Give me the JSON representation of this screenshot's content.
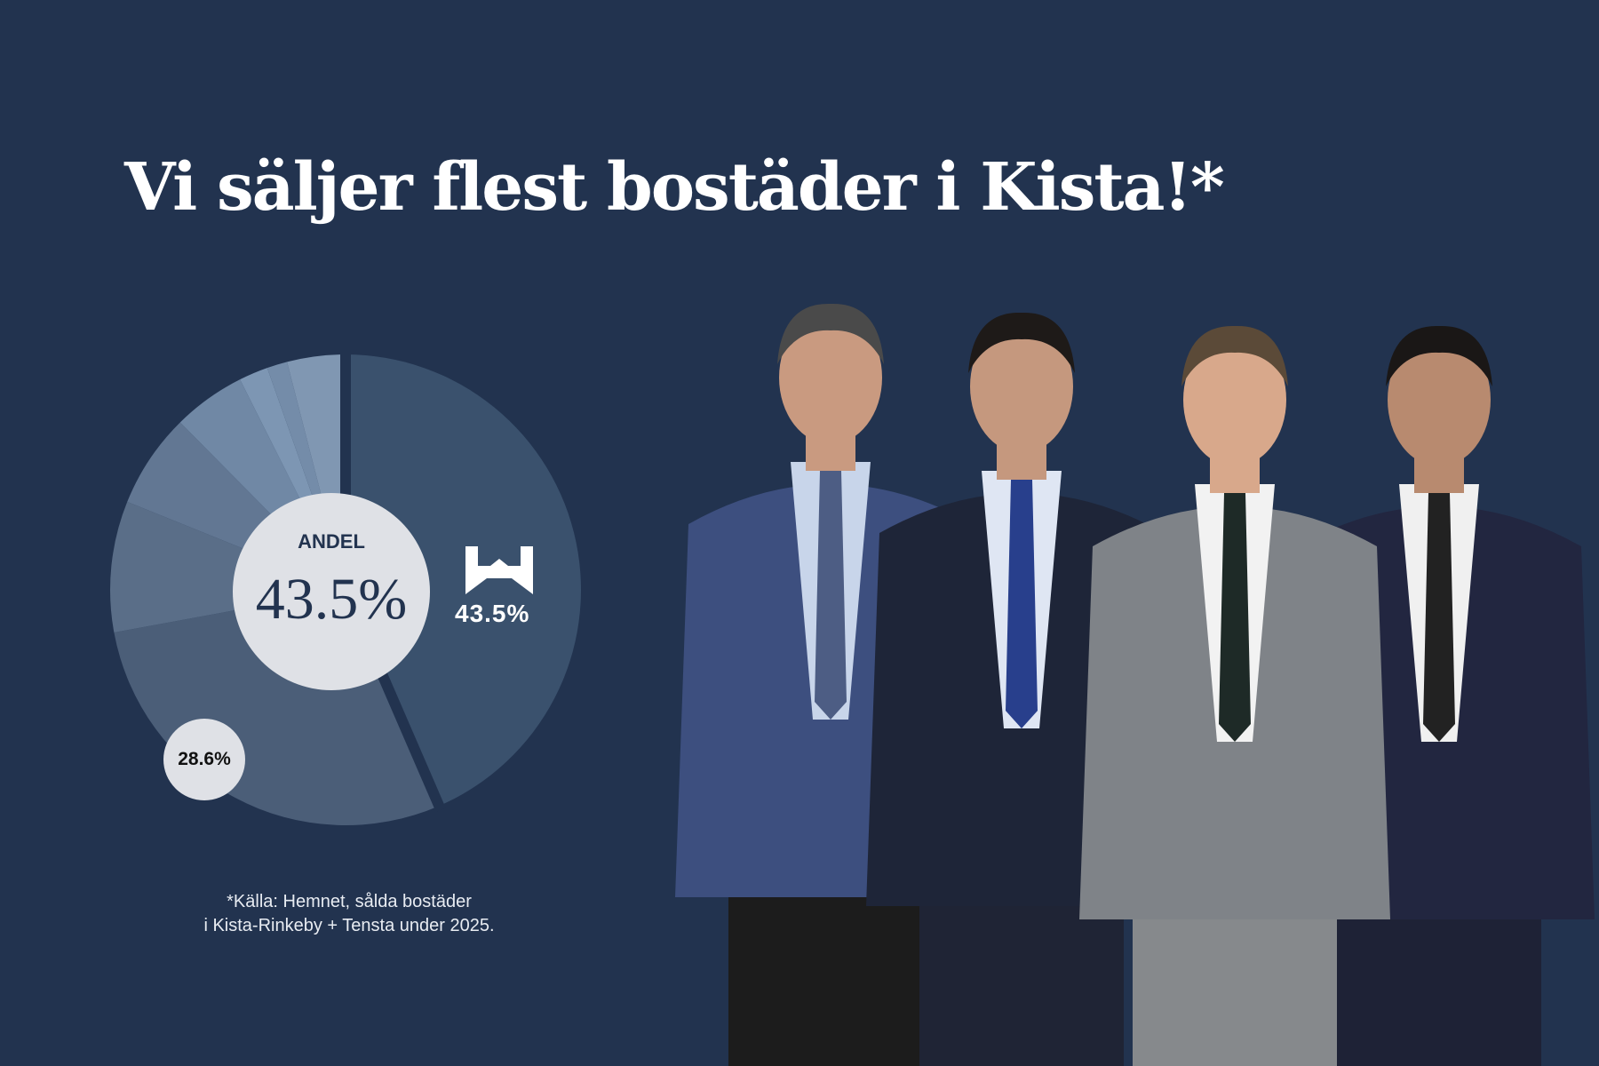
{
  "headline": "Vi säljer flest bostäder i Kista!*",
  "chart_data": {
    "type": "pie",
    "title": "",
    "center_label": "ANDEL",
    "center_value": "43.5%",
    "slices": [
      {
        "value": 43.5,
        "label": "43.5%",
        "color": "#3a516d",
        "highlight": true
      },
      {
        "value": 28.6,
        "label": "28.6%",
        "color": "#4b5e78"
      },
      {
        "value": 9.0,
        "color": "#5a6e88"
      },
      {
        "value": 6.5,
        "color": "#627793"
      },
      {
        "value": 5.0,
        "color": "#7088a5"
      },
      {
        "value": 2.0,
        "color": "#7d96b3"
      },
      {
        "value": 1.4,
        "color": "#748ca9"
      },
      {
        "value": 4.0,
        "color": "#8097b2"
      }
    ]
  },
  "logo_value": "43.5%",
  "small_badge": "28.6%",
  "footnote": {
    "line1": "*Källa: Hemnet, sålda bostäder",
    "line2": "i Kista-Rinkeby + Tensta under 2025."
  },
  "colors": {
    "background": "#22334f",
    "badge": "#dfe1e6"
  }
}
